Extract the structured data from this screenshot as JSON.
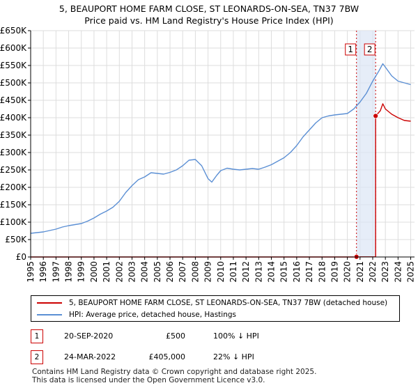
{
  "title_line1": "5, BEAUPORT HOME FARM CLOSE, ST LEONARDS-ON-SEA, TN37 7BW",
  "title_line2": "Price paid vs. HM Land Registry's House Price Index (HPI)",
  "chart_data": {
    "type": "line",
    "title": "5, BEAUPORT HOME FARM CLOSE, ST LEONARDS-ON-SEA, TN37 7BW — Price paid vs. HM Land Registry's House Price Index (HPI)",
    "xlim": [
      1995,
      2025.3
    ],
    "ylim": [
      0,
      650000
    ],
    "x_ticks": [
      1995,
      1996,
      1997,
      1998,
      1999,
      2000,
      2001,
      2002,
      2003,
      2004,
      2005,
      2006,
      2007,
      2008,
      2009,
      2010,
      2011,
      2012,
      2013,
      2014,
      2015,
      2016,
      2017,
      2018,
      2019,
      2020,
      2021,
      2022,
      2023,
      2024,
      2025
    ],
    "y_ticks": [
      0,
      50000,
      100000,
      150000,
      200000,
      250000,
      300000,
      350000,
      400000,
      450000,
      500000,
      550000,
      600000,
      650000
    ],
    "y_tick_labels": [
      "£0",
      "£50K",
      "£100K",
      "£150K",
      "£200K",
      "£250K",
      "£300K",
      "£350K",
      "£400K",
      "£450K",
      "£500K",
      "£550K",
      "£600K",
      "£650K"
    ],
    "grid": true,
    "series": [
      {
        "name": "HPI: Average price, detached house, Hastings",
        "color": "#5b8fd4",
        "points": [
          [
            1995.0,
            68000
          ],
          [
            1995.5,
            70000
          ],
          [
            1996.0,
            72000
          ],
          [
            1996.5,
            76000
          ],
          [
            1997.0,
            80000
          ],
          [
            1997.5,
            86000
          ],
          [
            1998.0,
            90000
          ],
          [
            1998.5,
            93000
          ],
          [
            1999.0,
            96000
          ],
          [
            1999.5,
            103000
          ],
          [
            2000.0,
            112000
          ],
          [
            2000.5,
            123000
          ],
          [
            2001.0,
            132000
          ],
          [
            2001.5,
            143000
          ],
          [
            2002.0,
            160000
          ],
          [
            2002.5,
            185000
          ],
          [
            2003.0,
            205000
          ],
          [
            2003.5,
            222000
          ],
          [
            2004.0,
            230000
          ],
          [
            2004.5,
            242000
          ],
          [
            2005.0,
            240000
          ],
          [
            2005.5,
            238000
          ],
          [
            2006.0,
            243000
          ],
          [
            2006.5,
            250000
          ],
          [
            2007.0,
            262000
          ],
          [
            2007.5,
            278000
          ],
          [
            2008.0,
            280000
          ],
          [
            2008.5,
            262000
          ],
          [
            2009.0,
            225000
          ],
          [
            2009.3,
            215000
          ],
          [
            2009.7,
            235000
          ],
          [
            2010.0,
            248000
          ],
          [
            2010.5,
            255000
          ],
          [
            2011.0,
            252000
          ],
          [
            2011.5,
            250000
          ],
          [
            2012.0,
            252000
          ],
          [
            2012.5,
            254000
          ],
          [
            2013.0,
            252000
          ],
          [
            2013.5,
            258000
          ],
          [
            2014.0,
            265000
          ],
          [
            2014.5,
            275000
          ],
          [
            2015.0,
            285000
          ],
          [
            2015.5,
            300000
          ],
          [
            2016.0,
            320000
          ],
          [
            2016.5,
            345000
          ],
          [
            2017.0,
            365000
          ],
          [
            2017.5,
            385000
          ],
          [
            2018.0,
            400000
          ],
          [
            2018.5,
            405000
          ],
          [
            2019.0,
            408000
          ],
          [
            2019.5,
            410000
          ],
          [
            2020.0,
            412000
          ],
          [
            2020.5,
            425000
          ],
          [
            2021.0,
            445000
          ],
          [
            2021.5,
            470000
          ],
          [
            2022.0,
            505000
          ],
          [
            2022.5,
            535000
          ],
          [
            2022.8,
            555000
          ],
          [
            2023.0,
            545000
          ],
          [
            2023.5,
            520000
          ],
          [
            2024.0,
            505000
          ],
          [
            2024.5,
            500000
          ],
          [
            2025.0,
            495000
          ]
        ]
      },
      {
        "name": "5, BEAUPORT HOME FARM CLOSE, ST LEONARDS-ON-SEA, TN37 7BW (detached house)",
        "color": "#cc0000",
        "points": [
          [
            1995.0,
            0
          ],
          [
            2020.72,
            0
          ],
          [
            2020.72,
            500
          ],
          [
            2022.23,
            500
          ],
          [
            2022.23,
            405000
          ],
          [
            2022.6,
            420000
          ],
          [
            2022.8,
            440000
          ],
          [
            2023.0,
            425000
          ],
          [
            2023.5,
            410000
          ],
          [
            2024.0,
            400000
          ],
          [
            2024.5,
            392000
          ],
          [
            2025.0,
            390000
          ]
        ]
      }
    ],
    "sales": [
      {
        "label": "1",
        "x": 2020.72,
        "price": 500,
        "date": "20-SEP-2020",
        "price_text": "£500",
        "hpi_text": "100% ↓ HPI"
      },
      {
        "label": "2",
        "x": 2022.23,
        "price": 405000,
        "date": "24-MAR-2022",
        "price_text": "£405,000",
        "hpi_text": "22% ↓ HPI"
      }
    ],
    "highlight_span": [
      2020.72,
      2022.23
    ]
  },
  "legend": {
    "property_label": "5, BEAUPORT HOME FARM CLOSE, ST LEONARDS-ON-SEA, TN37 7BW (detached house)",
    "hpi_label": "HPI: Average price, detached house, Hastings",
    "property_color": "#cc0000",
    "hpi_color": "#5b8fd4"
  },
  "footer": {
    "line1": "Contains HM Land Registry data © Crown copyright and database right 2025.",
    "line2": "This data is licensed under the Open Government Licence v3.0."
  }
}
